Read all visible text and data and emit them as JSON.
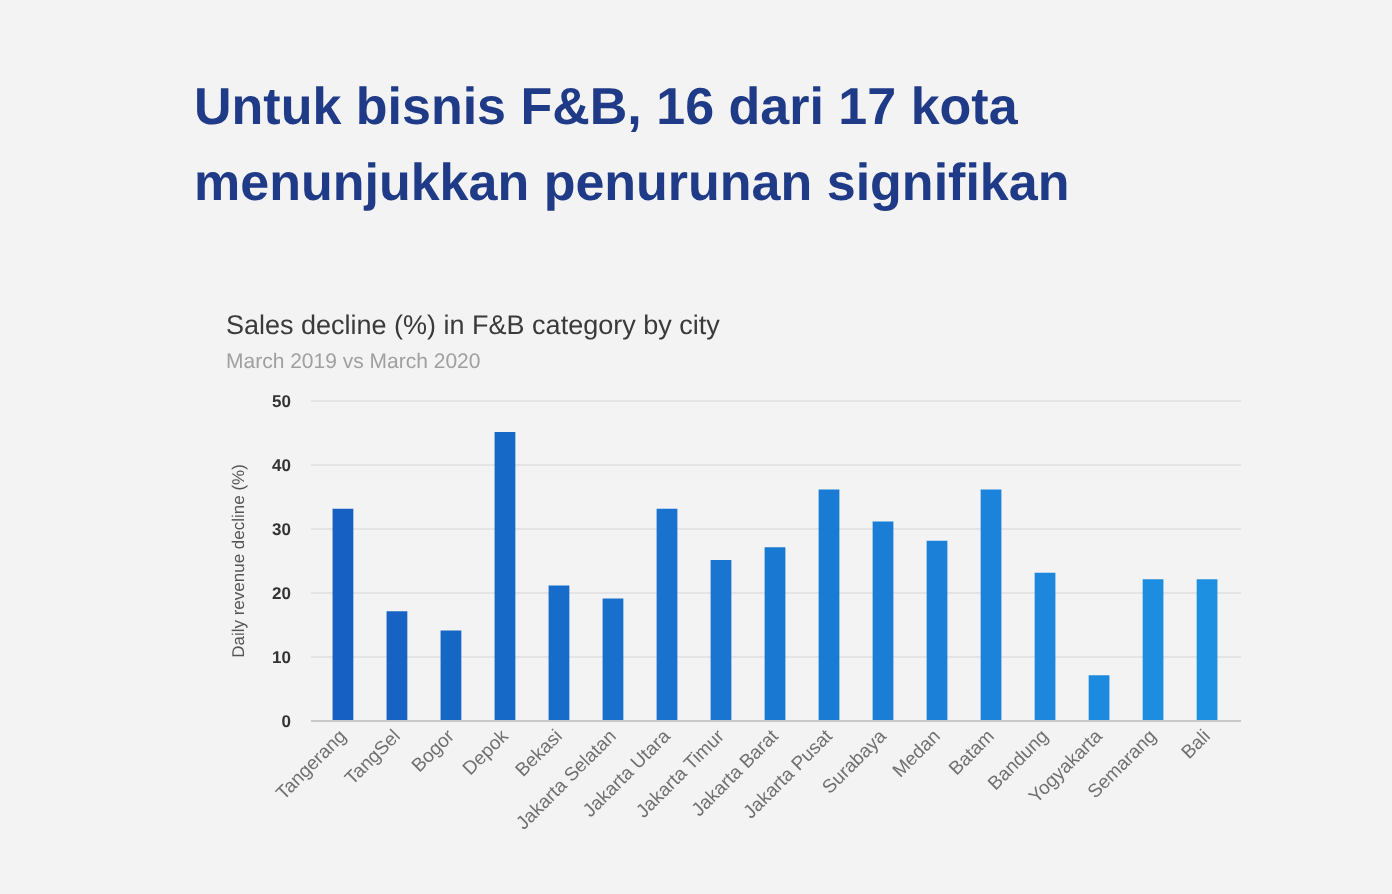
{
  "chart_data": {
    "type": "bar",
    "title": "Untuk bisnis F&B, 16 dari 17 kota menunjukkan penurunan signifikan",
    "subtitle": "Sales decline (%) in F&B category by city",
    "annotations": [
      "March 2019 vs March 2020"
    ],
    "ylabel": "Daily revenue decline (%)",
    "categories": [
      "Tangerang",
      "TangSel",
      "Bogor",
      "Depok",
      "Bekasi",
      "Jakarta Selatan",
      "Jakarta Utara",
      "Jakarta Timur",
      "Jakarta Barat",
      "Jakarta Pusat",
      "Surabaya",
      "Medan",
      "Batam",
      "Bandung",
      "Yogyakarta",
      "Semarang",
      "Bali"
    ],
    "values": [
      33,
      17,
      14,
      45,
      21,
      19,
      33,
      25,
      27,
      36,
      31,
      28,
      36,
      23,
      7,
      22,
      22
    ],
    "colors": [
      "#1560c2",
      "#1663c4",
      "#1666c6",
      "#1769c8",
      "#176cca",
      "#186fcc",
      "#1872ce",
      "#1975d0",
      "#1978d2",
      "#1a7bd4",
      "#1a7ed6",
      "#1b81d8",
      "#1b84da",
      "#1c87dc",
      "#1c8ade",
      "#1d8de0",
      "#1d90e2"
    ],
    "ylim": [
      0,
      50
    ],
    "yticks": [
      0,
      10,
      20,
      30,
      40,
      50
    ],
    "grid": "y"
  }
}
